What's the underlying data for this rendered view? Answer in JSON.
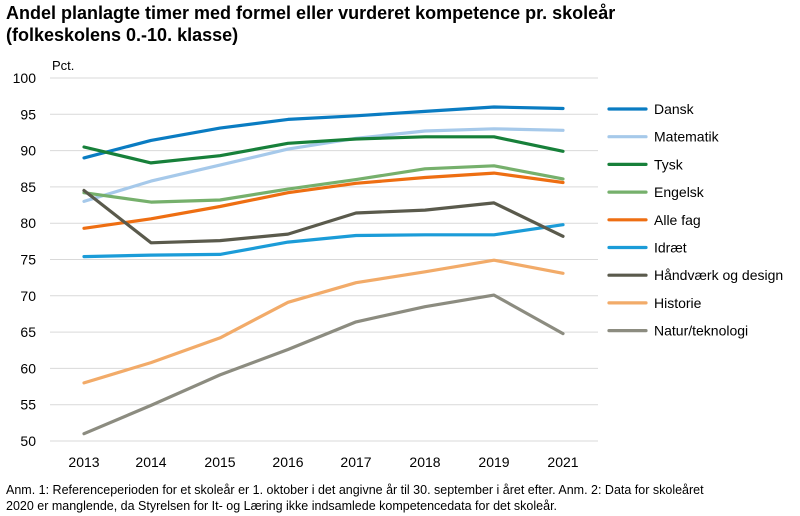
{
  "title_line1": "Andel planlagte timer med formel eller vurderet kompetence pr. skoleår",
  "title_line2": "(folkeskolens 0.-10. klasse)",
  "footnote_line1": "Anm. 1: Referenceperioden for et skoleår er 1. oktober i det angivne år til 30. september i året efter. Anm. 2: Data for skoleåret",
  "footnote_line2": "2020 er manglende, da Styrelsen for It- og Læring ikke indsamlede kompetencedata for det skoleår.",
  "chart_data": {
    "type": "line",
    "ylabel": "Pct.",
    "ylim": [
      50,
      100
    ],
    "ytick_step": 5,
    "grid": "horizontal",
    "legend_position": "right",
    "x": [
      2013,
      2014,
      2015,
      2016,
      2017,
      2018,
      2019,
      2021
    ],
    "series": [
      {
        "name": "Dansk",
        "color": "#0a7cc2",
        "values": [
          89.0,
          91.4,
          93.1,
          94.3,
          94.8,
          95.4,
          96.0,
          95.8
        ]
      },
      {
        "name": "Matematik",
        "color": "#a6c9ea",
        "values": [
          83.0,
          85.8,
          88.0,
          90.2,
          91.7,
          92.7,
          93.0,
          92.8
        ]
      },
      {
        "name": "Tysk",
        "color": "#17803a",
        "values": [
          90.5,
          88.3,
          89.3,
          91.0,
          91.6,
          91.9,
          91.9,
          89.9
        ]
      },
      {
        "name": "Engelsk",
        "color": "#76b06c",
        "values": [
          84.2,
          82.9,
          83.2,
          84.7,
          86.0,
          87.5,
          87.9,
          86.1
        ]
      },
      {
        "name": "Alle fag",
        "color": "#ee6e12",
        "values": [
          79.3,
          80.6,
          82.3,
          84.2,
          85.5,
          86.3,
          86.9,
          85.6
        ]
      },
      {
        "name": "Idræt",
        "color": "#1b9cd8",
        "values": [
          75.4,
          75.6,
          75.7,
          77.4,
          78.3,
          78.4,
          78.4,
          79.8
        ]
      },
      {
        "name": "Håndværk og design",
        "color": "#5a5a4c",
        "values": [
          84.5,
          77.3,
          77.6,
          78.5,
          81.4,
          81.8,
          82.8,
          78.2
        ]
      },
      {
        "name": "Historie",
        "color": "#f2ab69",
        "values": [
          58.0,
          60.8,
          64.2,
          69.1,
          71.8,
          73.3,
          74.9,
          73.1
        ]
      },
      {
        "name": "Natur/teknologi",
        "color": "#8c8c80",
        "values": [
          51.0,
          54.9,
          59.1,
          62.6,
          66.4,
          68.5,
          70.1,
          64.8
        ]
      }
    ]
  }
}
